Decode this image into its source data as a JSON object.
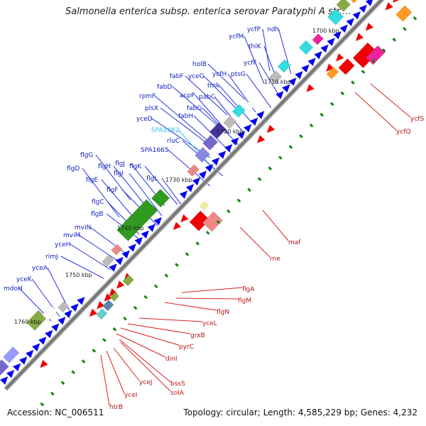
{
  "title": "Salmonella enterica subsp. enterica serovar Paratyphi A str....",
  "accession_label": "Accession: NC_006511",
  "topology_label": "Topology: circular; Length: 4,585,229 bp; Genes: 4,232",
  "colors": {
    "backbone": "#777777",
    "forward_gene": "#0000ee",
    "reverse_gene": "#ee0000",
    "label_line_forward": "#2233dd",
    "label_line_reverse": "#dd2222",
    "highlight_label": "#33bbee",
    "tick": "#118811",
    "flagellar_block": "#2e9a1e",
    "cog_cyan": "#33dddd",
    "cog_magenta": "#ee2299",
    "cog_purple": "#7766cc",
    "cog_olive": "#88aa44",
    "cog_orange": "#ff9922",
    "cog_grey": "#bbbbbb",
    "cog_pink": "#ee8888",
    "cog_khaki": "#eeee99"
  },
  "ticks": [
    "1700 kbp",
    "1710 kbp",
    "1720 kbp",
    "1730 kbp",
    "1740 kbp",
    "1750 kbp",
    "1760 kbp"
  ],
  "forward_labels": [
    "ycfP",
    "ndh",
    "ycfM",
    "thiK",
    "holB",
    "ycfF",
    "yceG",
    "ycfH",
    "ptsG",
    "fabF",
    "fabD",
    "tmk",
    "acpP",
    "pabC",
    "rpmF",
    "plsX",
    "fabG",
    "yceD",
    "fabH",
    "SPA1662",
    "rluC",
    "SPA1665",
    "flgG",
    "flgJ",
    "flgH",
    "flgK",
    "flgD",
    "flgI",
    "flgL",
    "flgE",
    "flgF",
    "flgC",
    "flgB",
    "mviN",
    "mviM",
    "yceH",
    "rimJ",
    "yceA",
    "yceK",
    "mdoH"
  ],
  "reverse_labels": [
    "ycfS",
    "ycfQ",
    "maf",
    "rne",
    "flgA",
    "flgM",
    "flgN",
    "yceL",
    "grxB",
    "pyrC",
    "dinI",
    "bssS",
    "solA",
    "yceJ",
    "yceI",
    "htrB"
  ]
}
